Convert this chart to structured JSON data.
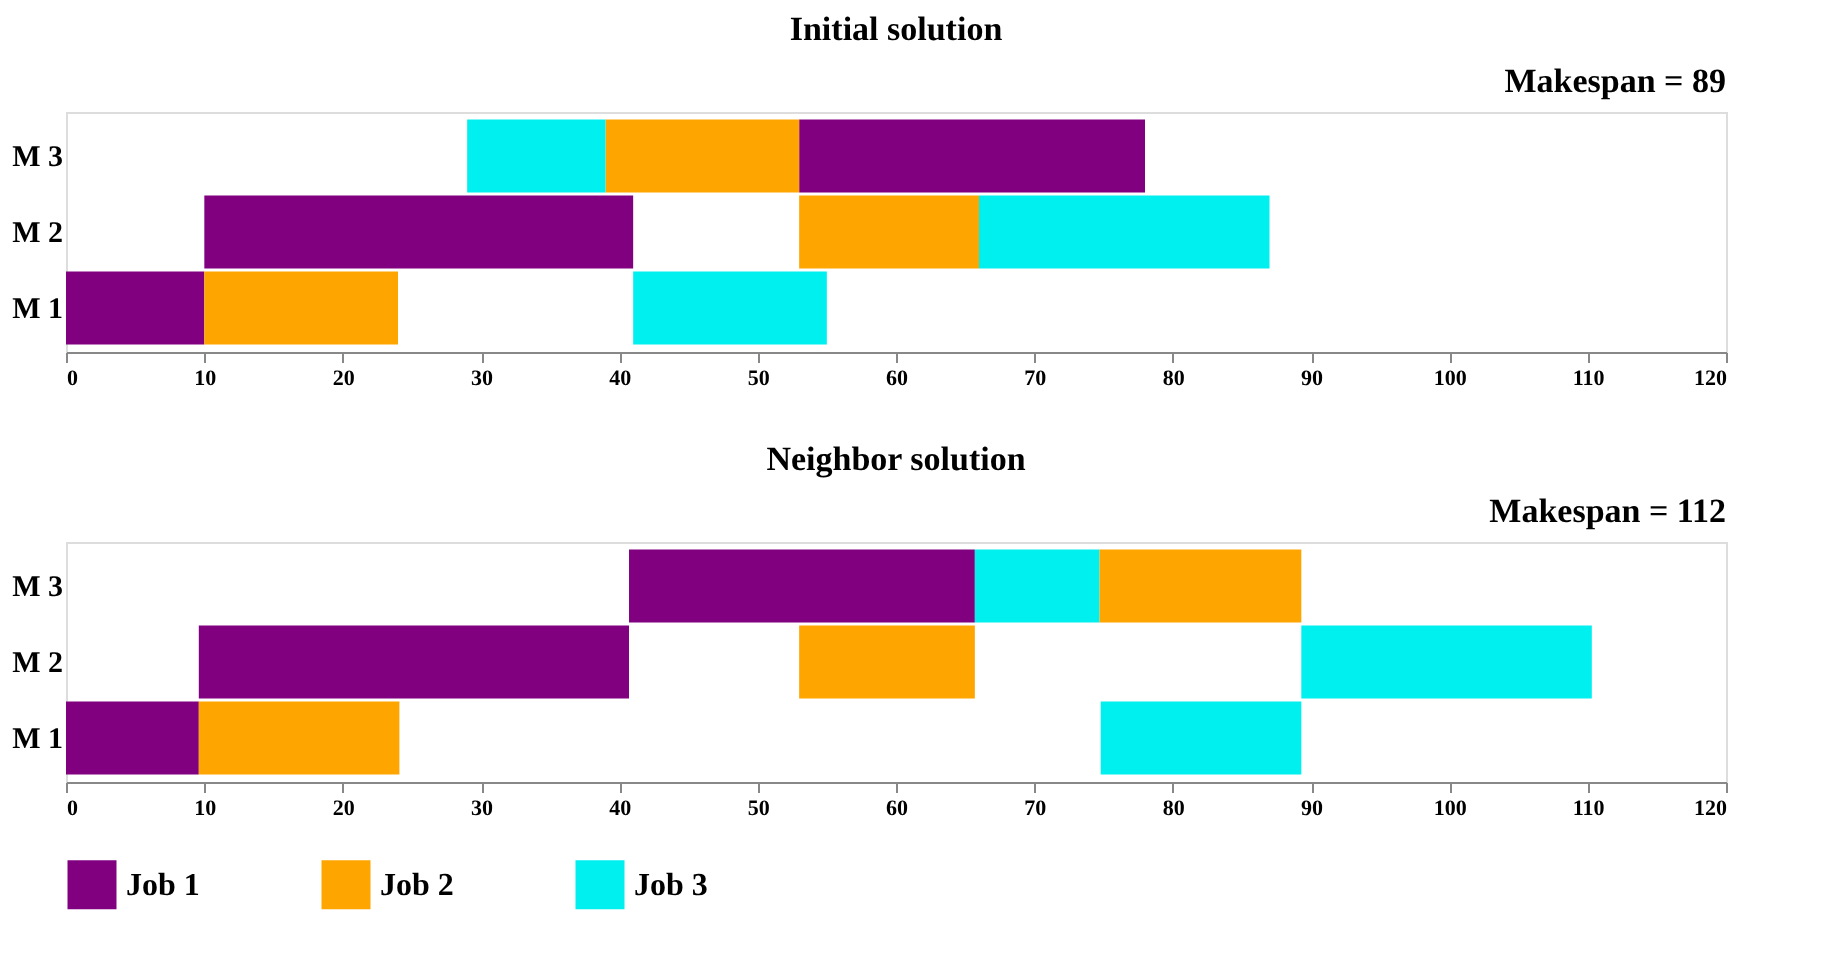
{
  "chart_data": [
    {
      "type": "bar",
      "orientation": "horizontal",
      "title": "Initial solution",
      "annotations": [
        "Makespan = 89"
      ],
      "categories": [
        "M 3",
        "M 2",
        "M 1"
      ],
      "xlim": [
        0,
        120
      ],
      "xticks": [
        0,
        10,
        20,
        30,
        40,
        50,
        60,
        70,
        80,
        90,
        100,
        110,
        120
      ],
      "grid": false,
      "series": [
        {
          "color": "#800080",
          "base": [
            53,
            10,
            0
          ],
          "values": [
            25,
            31,
            10
          ]
        },
        {
          "color": "#ffa500",
          "base": [
            39,
            53,
            10
          ],
          "values": [
            14,
            13,
            14
          ]
        },
        {
          "color": "#00f0f0",
          "base": [
            29,
            66,
            41
          ],
          "values": [
            10,
            21,
            14
          ]
        }
      ]
    },
    {
      "type": "bar",
      "orientation": "horizontal",
      "title": "Neighbor solution",
      "annotations": [
        "Makespan = 112"
      ],
      "categories": [
        "M 3",
        "M 2",
        "M 1"
      ],
      "xlim": [
        0,
        120
      ],
      "xticks": [
        0,
        10,
        20,
        30,
        40,
        50,
        60,
        70,
        80,
        90,
        100,
        110,
        120
      ],
      "grid": false,
      "legend": "bottom",
      "series": [
        {
          "name": "Job 1",
          "color": "#800080",
          "base": [
            40.7,
            9.6,
            0
          ],
          "values": [
            25,
            31.1,
            9.6
          ]
        },
        {
          "name": "Job 2",
          "color": "#ffa500",
          "base": [
            74.7,
            53,
            9.6
          ],
          "values": [
            14.6,
            12.7,
            14.5
          ]
        },
        {
          "name": "Job 3",
          "color": "#00f0f0",
          "base": [
            65.7,
            89.3,
            74.8
          ],
          "values": [
            9,
            21,
            14.5
          ]
        }
      ]
    }
  ]
}
